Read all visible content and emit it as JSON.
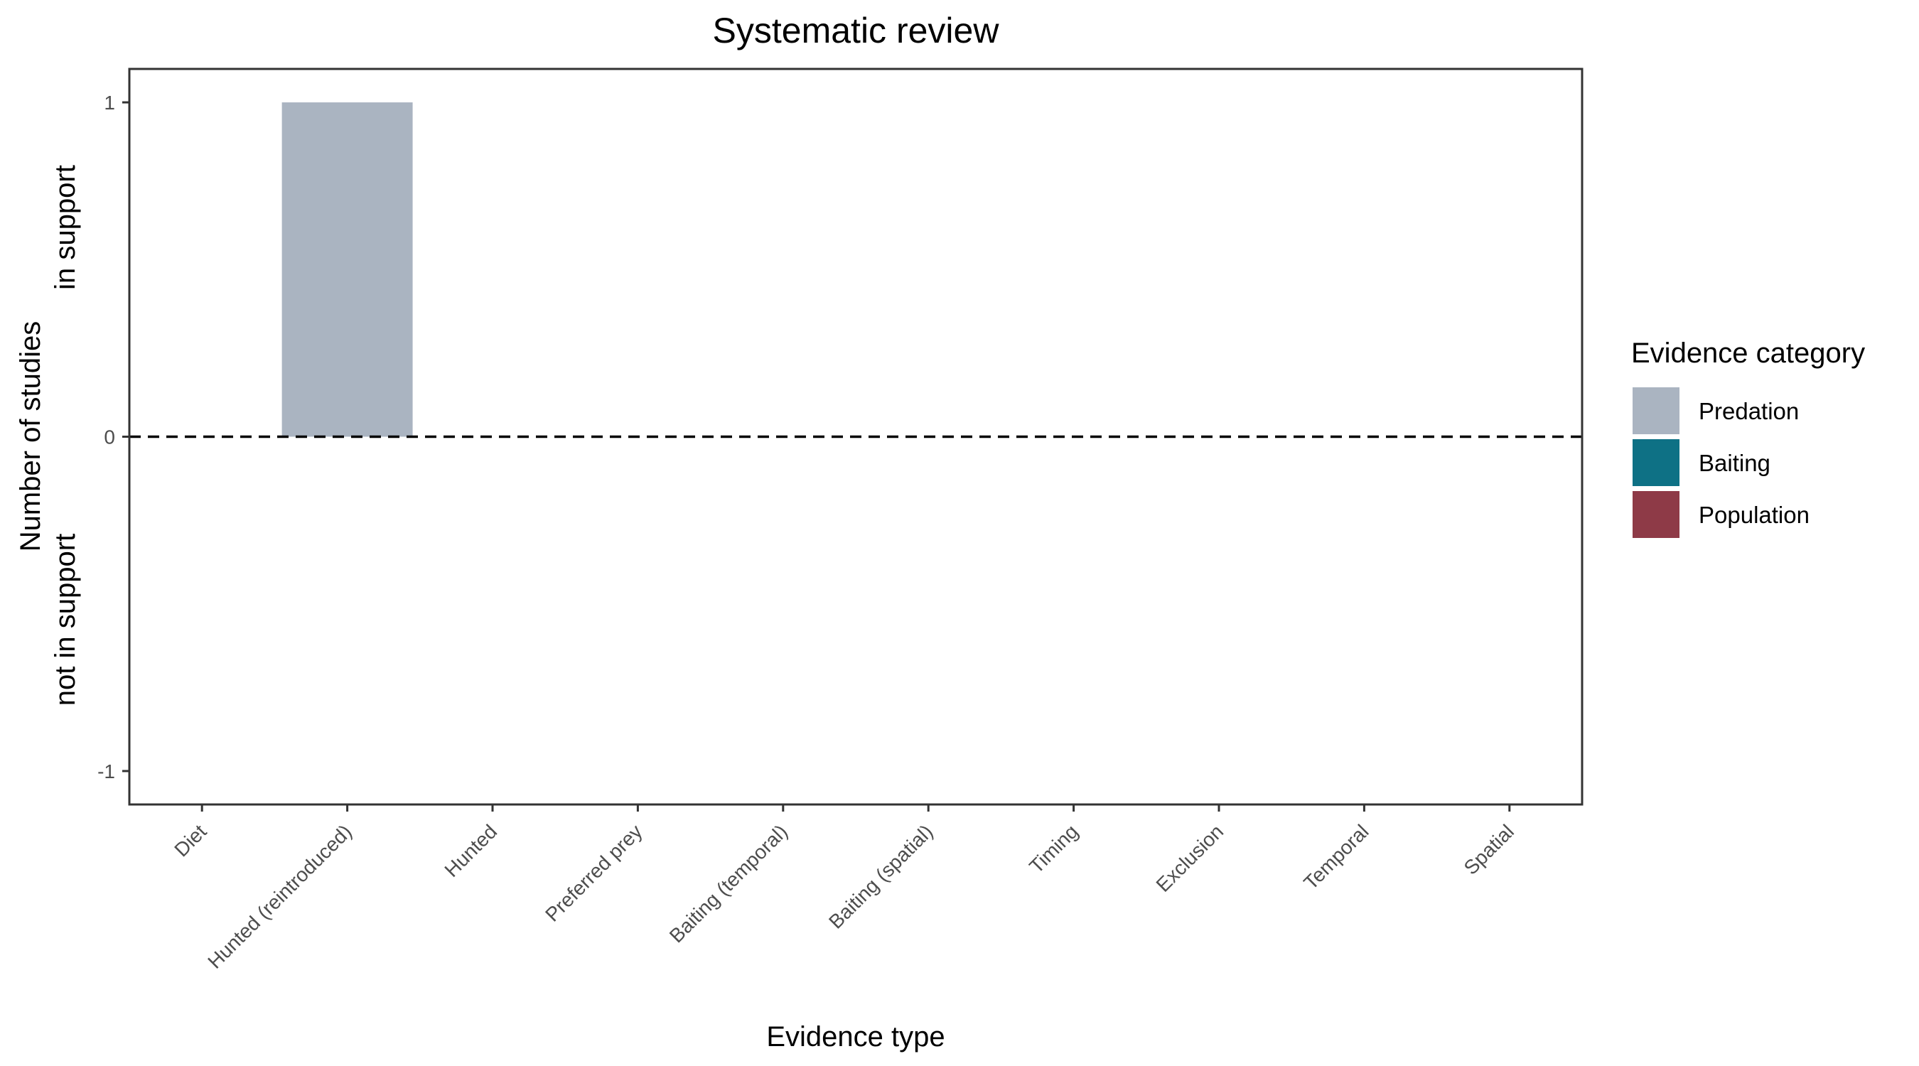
{
  "chart_data": {
    "type": "bar",
    "title": "Systematic review",
    "xlabel": "Evidence type",
    "ylabel_lines": [
      "Number of studies",
      "in support",
      "not in support"
    ],
    "ylim": [
      -1.1,
      1.1
    ],
    "yticks": [
      1,
      0,
      -1
    ],
    "categories": [
      "Diet",
      "Hunted (reintroduced)",
      "Hunted",
      "Preferred prey",
      "Baiting (temporal)",
      "Baiting (spatial)",
      "Timing",
      "Exclusion",
      "Temporal",
      "Spatial"
    ],
    "series": [
      {
        "name": "Predation",
        "color": "#aab4c1",
        "values": [
          0,
          1,
          0,
          0,
          0,
          0,
          0,
          0,
          0,
          0
        ]
      },
      {
        "name": "Baiting",
        "color": "#0e7185",
        "values": [
          0,
          0,
          0,
          0,
          0,
          0,
          0,
          0,
          0,
          0
        ]
      },
      {
        "name": "Population",
        "color": "#8e3a47",
        "values": [
          0,
          0,
          0,
          0,
          0,
          0,
          0,
          0,
          0,
          0
        ]
      }
    ],
    "legend": {
      "title": "Evidence category",
      "position": "right"
    },
    "grid": false,
    "reference_line": 0
  }
}
